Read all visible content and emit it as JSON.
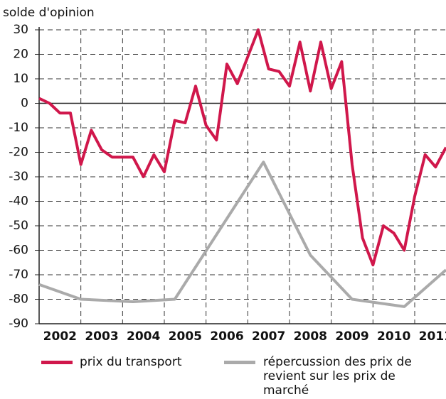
{
  "chart_data": {
    "type": "line",
    "y_axis_label": "solde d'opinion",
    "xlim": [
      2002,
      2011.75
    ],
    "xticks": [
      {
        "value": 2002.5,
        "label": "2002"
      },
      {
        "value": 2003.5,
        "label": "2003"
      },
      {
        "value": 2004.5,
        "label": "2004"
      },
      {
        "value": 2005.5,
        "label": "2005"
      },
      {
        "value": 2006.5,
        "label": "2006"
      },
      {
        "value": 2007.5,
        "label": "2007"
      },
      {
        "value": 2008.5,
        "label": "2008"
      },
      {
        "value": 2009.5,
        "label": "2009"
      },
      {
        "value": 2010.5,
        "label": "2010"
      },
      {
        "value": 2011.5,
        "label": "2011"
      }
    ],
    "xgrid": [
      2003,
      2004,
      2005,
      2006,
      2007,
      2008,
      2009,
      2010,
      2011
    ],
    "ylim": [
      -90,
      30
    ],
    "yticks": [
      30,
      20,
      10,
      0,
      -10,
      -20,
      -30,
      -40,
      -50,
      -60,
      -70,
      -80,
      -90
    ],
    "grid": true,
    "series": [
      {
        "name": "prix du transport",
        "color": "#d0174b",
        "x": [
          2002,
          2002.25,
          2002.5,
          2002.75,
          2003,
          2003.25,
          2003.5,
          2003.75,
          2004,
          2004.25,
          2004.5,
          2004.75,
          2005,
          2005.25,
          2005.5,
          2005.75,
          2006,
          2006.25,
          2006.5,
          2006.75,
          2007,
          2007.25,
          2007.5,
          2007.75,
          2008,
          2008.25,
          2008.5,
          2008.75,
          2009,
          2009.25,
          2009.5,
          2009.75,
          2010,
          2010.25,
          2010.5,
          2010.75,
          2011,
          2011.25,
          2011.5,
          2011.75
        ],
        "values": [
          2,
          0,
          -4,
          -4,
          -25,
          -11,
          -19,
          -22,
          -22,
          -22,
          -30,
          -21,
          -28,
          -7,
          -8,
          7,
          -9,
          -15,
          16,
          8,
          19,
          30,
          14,
          13,
          7,
          25,
          5,
          25,
          6,
          17,
          -25,
          -55,
          -66,
          -50,
          -53,
          -60,
          -38,
          -21,
          -26,
          -18
        ]
      },
      {
        "name": "répercussion des prix de revient sur les prix de marché",
        "color": "#aaaaaa",
        "x": [
          2002,
          2003,
          2004.25,
          2005.25,
          2007.375,
          2008.5,
          2009.5,
          2010.75,
          2011.75
        ],
        "values": [
          -74,
          -80,
          -81,
          -80,
          -24,
          -62,
          -80,
          -83,
          -68
        ]
      }
    ]
  }
}
